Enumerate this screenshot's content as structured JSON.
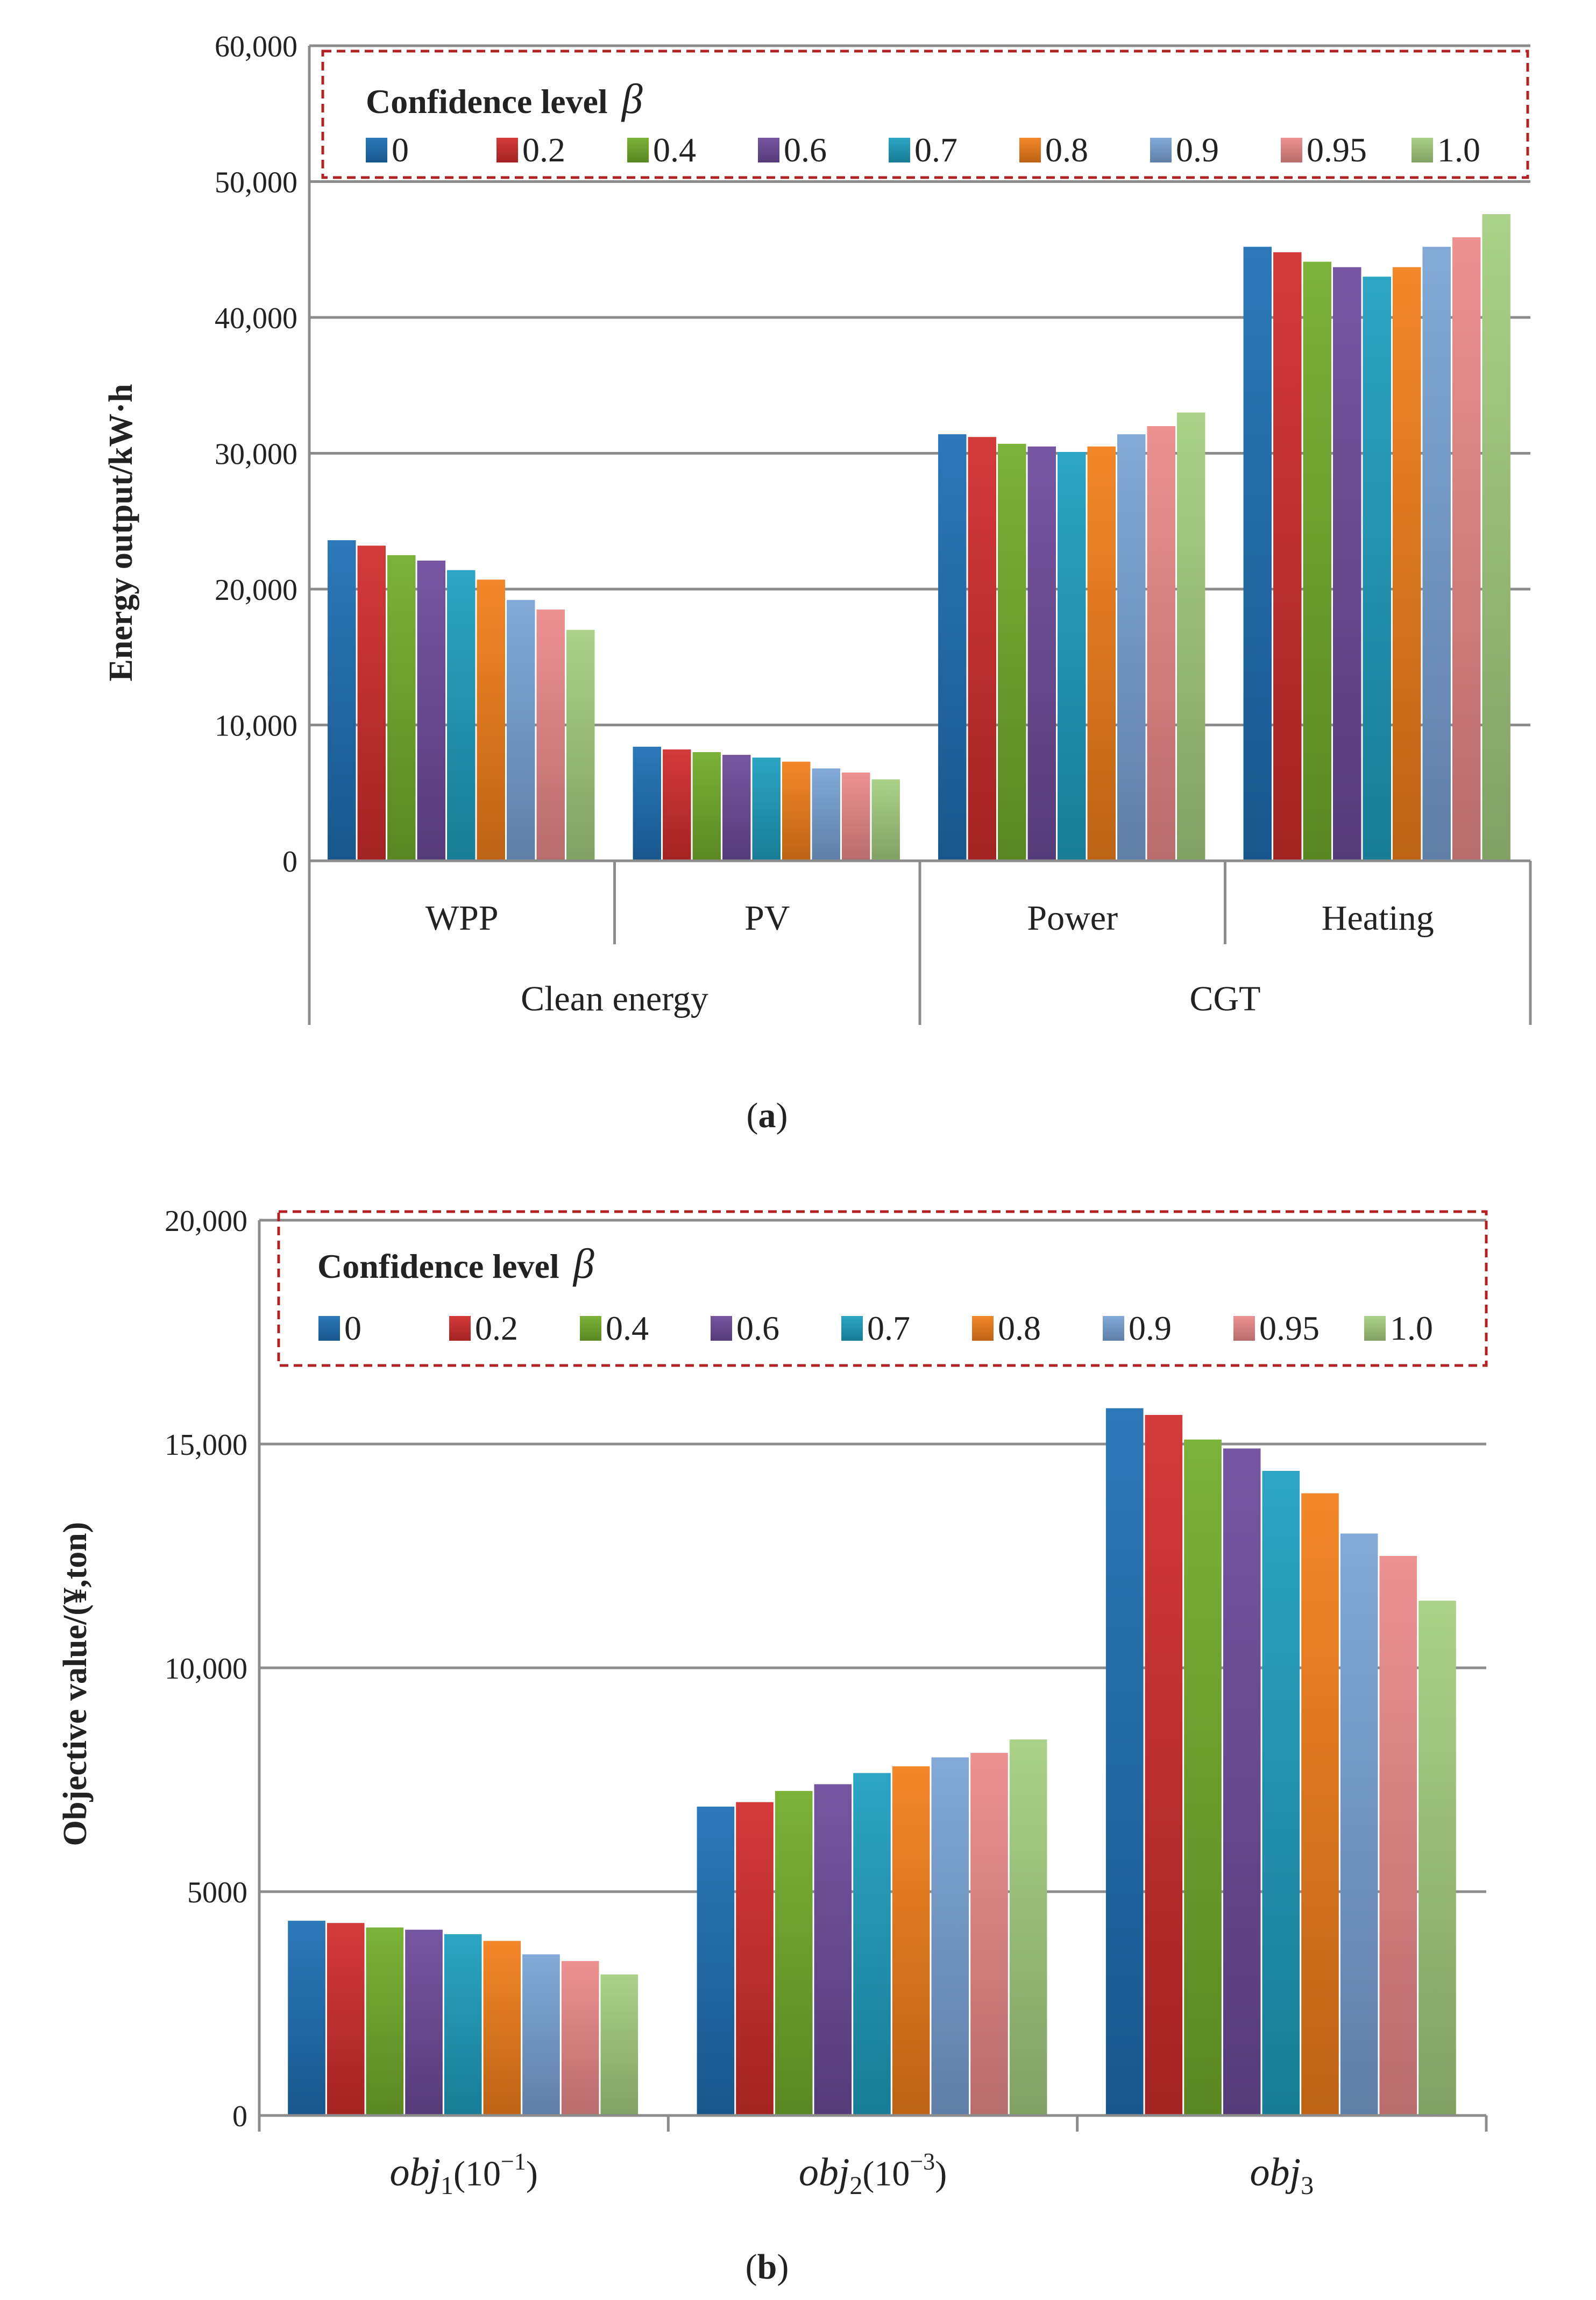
{
  "chart_data": [
    {
      "type": "bar",
      "panel_label_open": "(",
      "panel_label": "a",
      "panel_label_close": ")",
      "ylabel": "Energy output/kW·h",
      "ylim": [
        0,
        60000
      ],
      "yticks": [
        0,
        10000,
        20000,
        30000,
        40000,
        50000,
        60000
      ],
      "ytick_labels": [
        "0",
        "10,000",
        "20,000",
        "30,000",
        "40,000",
        "50,000",
        "60,000"
      ],
      "grid": true,
      "legend_placement": "top",
      "legend_title": "Confidence level",
      "legend_symbol": "β",
      "categories": [
        "WPP",
        "PV",
        "Power",
        "Heating"
      ],
      "groups": [
        "Clean energy",
        "CGT"
      ],
      "series": [
        {
          "name": "0",
          "values": [
            23600,
            8400,
            31400,
            45200
          ]
        },
        {
          "name": "0.2",
          "values": [
            23200,
            8200,
            31200,
            44800
          ]
        },
        {
          "name": "0.4",
          "values": [
            22500,
            8000,
            30700,
            44100
          ]
        },
        {
          "name": "0.6",
          "values": [
            22100,
            7800,
            30500,
            43700
          ]
        },
        {
          "name": "0.7",
          "values": [
            21400,
            7600,
            30100,
            43000
          ]
        },
        {
          "name": "0.8",
          "values": [
            20700,
            7300,
            30500,
            43700
          ]
        },
        {
          "name": "0.9",
          "values": [
            19200,
            6800,
            31400,
            45200
          ]
        },
        {
          "name": "0.95",
          "values": [
            18500,
            6500,
            32000,
            45900
          ]
        },
        {
          "name": "1.0",
          "values": [
            17000,
            6000,
            33000,
            47600
          ]
        }
      ]
    },
    {
      "type": "bar",
      "panel_label_open": "(",
      "panel_label": "b",
      "panel_label_close": ")",
      "ylabel": "Objective value/(¥,ton)",
      "ylim": [
        0,
        20000
      ],
      "yticks": [
        0,
        5000,
        10000,
        15000,
        20000
      ],
      "ytick_labels": [
        "0",
        "5000",
        "10,000",
        "15,000",
        "20,000"
      ],
      "grid": true,
      "legend_placement": "top",
      "legend_title": "Confidence level",
      "legend_symbol": "β",
      "categories": [
        {
          "base": "obj",
          "sub": "1",
          "suffix": "(10",
          "sup": "−1",
          "close": ")"
        },
        {
          "base": "obj",
          "sub": "2",
          "suffix": "(10",
          "sup": "−3",
          "close": ")"
        },
        {
          "base": "obj",
          "sub": "3",
          "suffix": "",
          "sup": "",
          "close": ""
        }
      ],
      "series": [
        {
          "name": "0",
          "values": [
            4350,
            6900,
            15800
          ]
        },
        {
          "name": "0.2",
          "values": [
            4300,
            7000,
            15650
          ]
        },
        {
          "name": "0.4",
          "values": [
            4200,
            7250,
            15100
          ]
        },
        {
          "name": "0.6",
          "values": [
            4150,
            7400,
            14900
          ]
        },
        {
          "name": "0.7",
          "values": [
            4050,
            7650,
            14400
          ]
        },
        {
          "name": "0.8",
          "values": [
            3900,
            7800,
            13900
          ]
        },
        {
          "name": "0.9",
          "values": [
            3600,
            8000,
            13000
          ]
        },
        {
          "name": "0.95",
          "values": [
            3450,
            8100,
            12500
          ]
        },
        {
          "name": "1.0",
          "values": [
            3150,
            8400,
            11500
          ]
        }
      ]
    }
  ],
  "colors": {
    "series": [
      "#1f6fb5",
      "#d12d2d",
      "#73ad2c",
      "#6e4b9b",
      "#1f9fbf",
      "#f27f1b",
      "#7aa3d6",
      "#ec8a8a",
      "#a6cf80"
    ],
    "grid": "#8c8c8c",
    "axis": "#8c8c8c",
    "legend_border": "#b22222"
  }
}
